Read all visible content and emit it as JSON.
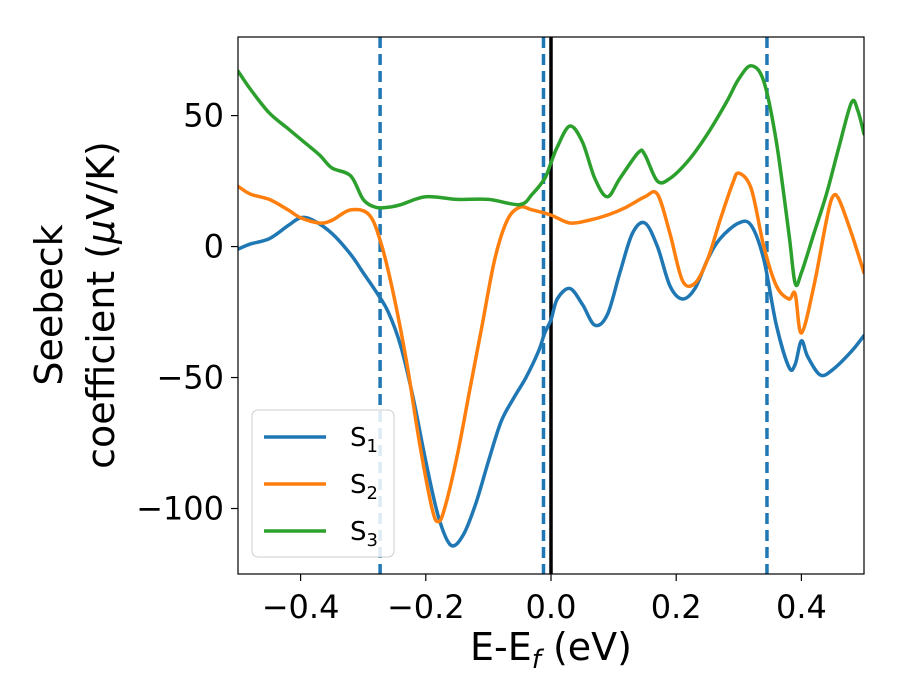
{
  "chart_data": {
    "type": "line",
    "xlabel": {
      "main": "E-E",
      "sub": "f",
      "unit": " (eV)"
    },
    "ylabel": {
      "line1": "Seebeck",
      "line2_pre": "coefficient  (",
      "line2_mu": "μ",
      "line2_post": "V/K)"
    },
    "xlim": [
      -0.5,
      0.5
    ],
    "ylim": [
      -125,
      80
    ],
    "x_ticks": [
      {
        "value": -0.4,
        "label": "−0.4"
      },
      {
        "value": -0.2,
        "label": "−0.2"
      },
      {
        "value": 0.0,
        "label": "0.0"
      },
      {
        "value": 0.2,
        "label": "0.2"
      },
      {
        "value": 0.4,
        "label": "0.4"
      }
    ],
    "y_ticks": [
      {
        "value": 50,
        "label": "50"
      },
      {
        "value": 0,
        "label": "0"
      },
      {
        "value": -50,
        "label": "−50"
      },
      {
        "value": -100,
        "label": "−100"
      }
    ],
    "vlines_dashed": [
      -0.273,
      -0.012,
      0.345
    ],
    "vline_solid": 0.0,
    "legend_position": "lower left",
    "series": [
      {
        "name": "S",
        "sub": "1",
        "color": "#1f77b4",
        "points": [
          [
            -0.5,
            -1
          ],
          [
            -0.48,
            1
          ],
          [
            -0.45,
            3
          ],
          [
            -0.42,
            8
          ],
          [
            -0.4,
            11
          ],
          [
            -0.38,
            10
          ],
          [
            -0.35,
            5
          ],
          [
            -0.32,
            -3
          ],
          [
            -0.3,
            -10
          ],
          [
            -0.28,
            -17
          ],
          [
            -0.26,
            -25
          ],
          [
            -0.24,
            -38
          ],
          [
            -0.22,
            -58
          ],
          [
            -0.2,
            -82
          ],
          [
            -0.18,
            -103
          ],
          [
            -0.16,
            -114
          ],
          [
            -0.14,
            -110
          ],
          [
            -0.12,
            -98
          ],
          [
            -0.1,
            -82
          ],
          [
            -0.08,
            -67
          ],
          [
            -0.06,
            -58
          ],
          [
            -0.04,
            -50
          ],
          [
            -0.02,
            -40
          ],
          [
            -0.01,
            -33
          ],
          [
            0.0,
            -28
          ],
          [
            0.01,
            -20
          ],
          [
            0.03,
            -16
          ],
          [
            0.05,
            -22
          ],
          [
            0.07,
            -30
          ],
          [
            0.09,
            -26
          ],
          [
            0.11,
            -10
          ],
          [
            0.13,
            5
          ],
          [
            0.15,
            9
          ],
          [
            0.17,
            0
          ],
          [
            0.19,
            -15
          ],
          [
            0.21,
            -20
          ],
          [
            0.23,
            -16
          ],
          [
            0.25,
            -5
          ],
          [
            0.27,
            3
          ],
          [
            0.3,
            9
          ],
          [
            0.32,
            8
          ],
          [
            0.34,
            -5
          ],
          [
            0.36,
            -30
          ],
          [
            0.38,
            -46
          ],
          [
            0.39,
            -45
          ],
          [
            0.4,
            -36
          ],
          [
            0.41,
            -42
          ],
          [
            0.43,
            -49
          ],
          [
            0.45,
            -47
          ],
          [
            0.48,
            -40
          ],
          [
            0.5,
            -34
          ]
        ]
      },
      {
        "name": "S",
        "sub": "2",
        "color": "#ff7f0e",
        "points": [
          [
            -0.5,
            23
          ],
          [
            -0.48,
            20
          ],
          [
            -0.45,
            18
          ],
          [
            -0.42,
            14
          ],
          [
            -0.4,
            11
          ],
          [
            -0.37,
            9
          ],
          [
            -0.35,
            10
          ],
          [
            -0.32,
            14
          ],
          [
            -0.29,
            12
          ],
          [
            -0.27,
            0
          ],
          [
            -0.25,
            -20
          ],
          [
            -0.23,
            -45
          ],
          [
            -0.21,
            -75
          ],
          [
            -0.19,
            -100
          ],
          [
            -0.18,
            -105
          ],
          [
            -0.17,
            -100
          ],
          [
            -0.15,
            -80
          ],
          [
            -0.13,
            -55
          ],
          [
            -0.11,
            -30
          ],
          [
            -0.09,
            -5
          ],
          [
            -0.07,
            10
          ],
          [
            -0.05,
            15
          ],
          [
            -0.03,
            14
          ],
          [
            0.0,
            12
          ],
          [
            0.03,
            9
          ],
          [
            0.06,
            10
          ],
          [
            0.09,
            12
          ],
          [
            0.12,
            15
          ],
          [
            0.15,
            19
          ],
          [
            0.17,
            20
          ],
          [
            0.19,
            5
          ],
          [
            0.21,
            -13
          ],
          [
            0.23,
            -14
          ],
          [
            0.25,
            -5
          ],
          [
            0.27,
            10
          ],
          [
            0.29,
            24
          ],
          [
            0.3,
            28
          ],
          [
            0.32,
            22
          ],
          [
            0.34,
            0
          ],
          [
            0.36,
            -15
          ],
          [
            0.38,
            -20
          ],
          [
            0.39,
            -18
          ],
          [
            0.4,
            -33
          ],
          [
            0.42,
            -15
          ],
          [
            0.44,
            10
          ],
          [
            0.45,
            19
          ],
          [
            0.46,
            18
          ],
          [
            0.48,
            5
          ],
          [
            0.5,
            -10
          ]
        ]
      },
      {
        "name": "S",
        "sub": "3",
        "color": "#2ca02c",
        "points": [
          [
            -0.5,
            67
          ],
          [
            -0.48,
            60
          ],
          [
            -0.45,
            51
          ],
          [
            -0.42,
            45
          ],
          [
            -0.4,
            41
          ],
          [
            -0.37,
            35
          ],
          [
            -0.35,
            30
          ],
          [
            -0.32,
            27
          ],
          [
            -0.3,
            18
          ],
          [
            -0.28,
            15
          ],
          [
            -0.26,
            15
          ],
          [
            -0.24,
            16
          ],
          [
            -0.2,
            19
          ],
          [
            -0.15,
            18
          ],
          [
            -0.1,
            18
          ],
          [
            -0.05,
            16
          ],
          [
            -0.03,
            20
          ],
          [
            -0.01,
            26
          ],
          [
            0.0,
            32
          ],
          [
            0.01,
            38
          ],
          [
            0.03,
            46
          ],
          [
            0.05,
            40
          ],
          [
            0.07,
            26
          ],
          [
            0.09,
            19
          ],
          [
            0.11,
            26
          ],
          [
            0.14,
            36
          ],
          [
            0.15,
            35
          ],
          [
            0.17,
            25
          ],
          [
            0.19,
            26
          ],
          [
            0.22,
            33
          ],
          [
            0.25,
            43
          ],
          [
            0.28,
            55
          ],
          [
            0.3,
            64
          ],
          [
            0.32,
            69
          ],
          [
            0.34,
            63
          ],
          [
            0.36,
            40
          ],
          [
            0.38,
            5
          ],
          [
            0.39,
            -14
          ],
          [
            0.4,
            -10
          ],
          [
            0.42,
            5
          ],
          [
            0.44,
            20
          ],
          [
            0.46,
            38
          ],
          [
            0.48,
            55
          ],
          [
            0.49,
            52
          ],
          [
            0.5,
            43
          ]
        ]
      }
    ]
  }
}
